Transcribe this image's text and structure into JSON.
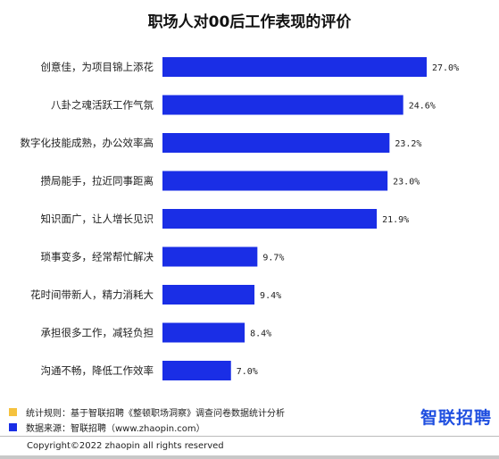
{
  "colors": {
    "bar": "#1a2ee6",
    "legend_rule": "#f5c23e",
    "legend_source": "#1a2ee6",
    "brand": "#1f4fe0"
  },
  "chart_data": {
    "type": "bar",
    "orientation": "horizontal",
    "title": "职场人对00后工作表现的评价",
    "categories": [
      "创意佳，为项目锦上添花",
      "八卦之魂活跃工作气氛",
      "数字化技能成熟，办公效率高",
      "攒局能手，拉近同事距离",
      "知识面广，让人增长见识",
      "琐事变多，经常帮忙解决",
      "花时间带新人，精力消耗大",
      "承担很多工作，减轻负担",
      "沟通不畅，降低工作效率"
    ],
    "values": [
      27.0,
      24.6,
      23.2,
      23.0,
      21.9,
      9.7,
      9.4,
      8.4,
      7.0
    ],
    "value_labels": [
      "27.0%",
      "24.6%",
      "23.2%",
      "23.0%",
      "21.9%",
      "9.7%",
      "9.4%",
      "8.4%",
      "7.0%"
    ],
    "unit": "%",
    "xlim": [
      0,
      27.0
    ],
    "grid": false
  },
  "legend": {
    "rule": "统计规则：基于智联招聘《整顿职场洞察》调查问卷数据统计分析",
    "source": "数据来源：智联招聘（www.zhaopin.com）"
  },
  "brand": "智联招聘",
  "copyright": "Copyright©2022 zhaopin all rights reserved"
}
